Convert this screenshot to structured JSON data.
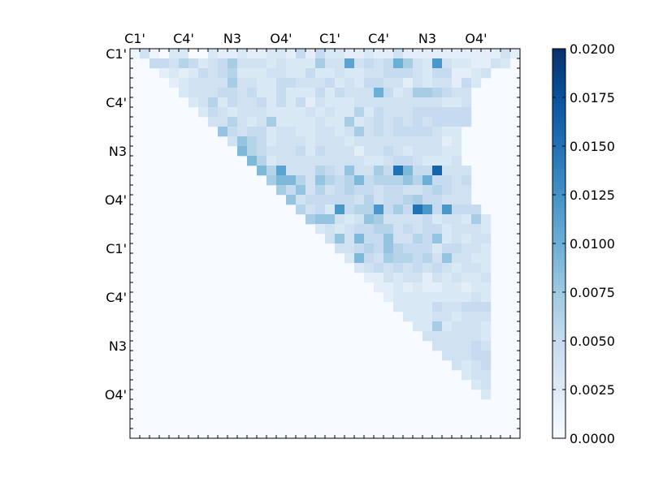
{
  "chart_data": {
    "type": "heatmap",
    "grid_size": 40,
    "x_tick_labels": [
      "C1'",
      "C4'",
      "N3",
      "O4'",
      "C1'",
      "C4'",
      "N3",
      "O4'"
    ],
    "y_tick_labels": [
      "C1'",
      "C4'",
      "N3",
      "O4'",
      "C1'",
      "C4'",
      "N3",
      "O4'"
    ],
    "colorbar": {
      "min": 0.0,
      "max": 0.02,
      "tick_labels": [
        "0.0000",
        "0.0025",
        "0.0050",
        "0.0075",
        "0.0100",
        "0.0125",
        "0.0150",
        "0.0175",
        "0.0200"
      ],
      "colormap": "Blues"
    },
    "rows": [
      "1.4.1.0.3.3.0.0.3.2.2.3.2.2.3.3.2.5.2.5.3.3.2.2.3.2.2.4.2.2.2.2.2.2.2.2.2.2.4.2",
      "..5.5.4.6.5.3.4.5.7.4.4.4.3.4.3.3.3.7.4.4.11.4.5.4.5.10.7.4.3.12.4.3.3.2.2.4.3",
      "...2.3.2.3.5.4.5.6.3.3.3.4.4.3.3.5.3.3.4.3.3.4.4.5.5.5.4.3.5.5.2.2.3.4",
      "....2.3.4.4.4.4.7.4.4.3.3.5.5.4.4.4.5.3.4.3.5.5.4.4.2.4.3.4.4.2.5.3",
      ".....3.4.4.4.5.5.4.5.3.3.5.3.3.3.5.3.5.4.4.4.10.5.3.4.7.7.6.5.4.4",
      "......3.4.6.3.5.4.4.5.3.5.3.5.2.4.3.3.3.4.4.4.4.4.4.4.4.4.3.3.4",
      ".......3.5.4.3.4.4.4.3.3.3.3.4.3.4.3.3.6.3.5.4.4.4.5.5.5.5.5.5",
      "........4.4.6.4.3.4.7.3.3.3.3.4.3.3.7.3.4.5.4.5.4.5.4.5.5.5.5",
      ".........8.5.4.5.5.3.4.4.3.3.4.4.3.4.7.4.5.4.5.5.5.5.4.3.3",
      "..........4.8.6.5.3.4.4.4.3.4.4.4.3.4.4.4.4.4.4.4.4.4.2.3",
      "...........9.6.5.4.4.4.5.3.5.4.4.4.2.4.4.5.4.3.4.4.4.3.3",
      "............9.6.3.4.4.4.4.4.4.4.4.4.3.3.4.5.5.4.3.3.3.4",
      ".............9.6.11.4.4.4.6.5.4.8.4.4.7.5.15.9.5.5.16.4.4.4",
      "..............7.9.9.6.4.8.6.5.6.9.5.6.6.6.8.6.10.5.5.4.5",
      "...............7.5.8.4.6.4.5.6.5.5.4.5.5.4.4.5.6.5.4.4",
      "................8.4.5.5.5.5.5.4.6.4.5.5.6.7.5.5.4.4.4",
      ".................6.4.5.3.12.5.6.6.12.5.7.5.15.12.5.12.5.5.5",
      "..................7.8.8.4.3.4.8.7.4.4.4.4.5.3.4.4.3.7.3",
      "...................3.4.3.4.5.5.6.6.4.5.4.5.5.3.4.4.4.3",
      "....................4.8.4.9.5.5.8.4.4.6.5.8.3.4.3.4.4",
      ".....................4.4.5.6.5.8.6.5.5.5.3.5.5.4.4.3",
      "......................3.9.5.4.7.6.6.5.6.4.8.4.4.3.3",
      ".......................3.4.5.4.5.4.5.4.5.4.3.4.4.3",
      "........................2.2.4.3.4.4.2.4.3.4.3.3.4",
      ".........................2.2.3.2.3.2.2.3.3.2.3.3",
      "..........................2.3.3.3.3.3.3.3.3.4.3",
      "...........................3.3.3.3.5.4.4.5.5.5",
      "............................3.3.3.4.4.3.4.4.4",
      ".............................3.3.7.3.4.4.4.3",
      "..............................4.4.4.4.4.4.3",
      "...............................4.4.4.4.5.4",
      "................................4.4.4.5.5",
      ".................................4.3.4.5",
      "..................................3.4.4",
      "...................................3.4",
      "....................................3",
      ".....................................",
      "......................................",
      ".......................................",
      "........................................"
    ]
  }
}
